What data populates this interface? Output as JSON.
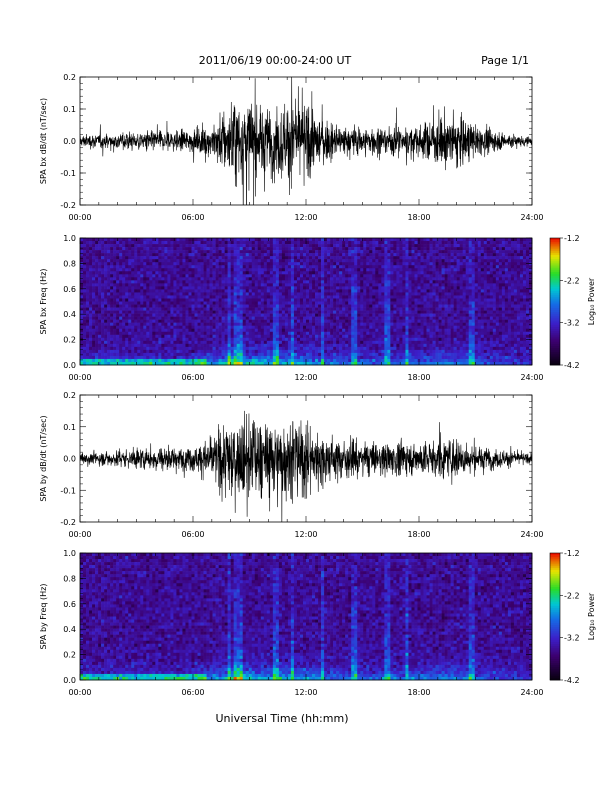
{
  "header": {
    "date_range": "2011/06/19  00:00-24:00 UT",
    "page": "Page 1/1"
  },
  "xaxis_title": "Universal Time (hh:mm)",
  "colorbar_label": "Log₁₀ Power",
  "colors": {
    "background": "#ffffff",
    "trace": "#000000"
  },
  "chart_data": [
    {
      "type": "line",
      "ylabel": "SPA bx dB/dt (nT/sec)",
      "x": [
        "00:00",
        "06:00",
        "12:00",
        "18:00",
        "24:00"
      ],
      "xlim": [
        0,
        24
      ],
      "ylim": [
        -0.2,
        0.2
      ],
      "yticks": [
        "0.2",
        "0.1",
        "0.0",
        "-0.1",
        "-0.2"
      ],
      "envelope": {
        "hours": [
          0,
          2,
          4,
          6,
          7,
          8,
          9,
          10,
          11,
          12,
          13,
          14,
          16,
          18,
          19,
          20,
          21,
          22,
          24
        ],
        "amplitude": [
          0.03,
          0.04,
          0.05,
          0.05,
          0.08,
          0.2,
          0.2,
          0.16,
          0.2,
          0.18,
          0.1,
          0.07,
          0.07,
          0.07,
          0.12,
          0.14,
          0.07,
          0.05,
          0.02
        ]
      }
    },
    {
      "type": "heatmap",
      "ylabel": "SPA bx Freq (Hz)",
      "x": [
        "00:00",
        "06:00",
        "12:00",
        "18:00",
        "24:00"
      ],
      "xlim": [
        0,
        24
      ],
      "ylim": [
        0.0,
        1.0
      ],
      "yticks": [
        "1.0",
        "0.8",
        "0.6",
        "0.4",
        "0.2",
        "0.0"
      ],
      "colorbar": {
        "ticks": [
          "-1.2",
          "-2.2",
          "-3.2",
          "-4.2"
        ],
        "range": [
          -4.2,
          -1.2
        ]
      }
    },
    {
      "type": "line",
      "ylabel": "SPA by dB/dt (nT/sec)",
      "x": [
        "00:00",
        "06:00",
        "12:00",
        "18:00",
        "24:00"
      ],
      "xlim": [
        0,
        24
      ],
      "ylim": [
        -0.2,
        0.2
      ],
      "yticks": [
        "0.2",
        "0.1",
        "0.0",
        "-0.1",
        "-0.2"
      ],
      "envelope": {
        "hours": [
          0,
          2,
          4,
          6,
          7,
          8,
          9,
          10,
          11,
          12,
          13,
          14,
          16,
          18,
          19,
          20,
          21,
          22,
          24
        ],
        "amplitude": [
          0.03,
          0.04,
          0.06,
          0.06,
          0.1,
          0.2,
          0.2,
          0.17,
          0.2,
          0.18,
          0.11,
          0.09,
          0.08,
          0.08,
          0.09,
          0.1,
          0.06,
          0.05,
          0.02
        ]
      }
    },
    {
      "type": "heatmap",
      "ylabel": "SPA by Freq (Hz)",
      "x": [
        "00:00",
        "06:00",
        "12:00",
        "18:00",
        "24:00"
      ],
      "xlim": [
        0,
        24
      ],
      "ylim": [
        0.0,
        1.0
      ],
      "yticks": [
        "1.0",
        "0.8",
        "0.6",
        "0.4",
        "0.2",
        "0.0"
      ],
      "colorbar": {
        "ticks": [
          "-1.2",
          "-2.2",
          "-3.2",
          "-4.2"
        ],
        "range": [
          -4.2,
          -1.2
        ]
      }
    }
  ]
}
